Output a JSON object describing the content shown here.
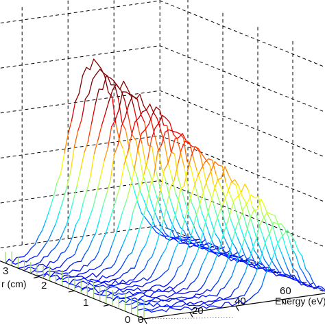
{
  "chart_data": {
    "type": "waterfall-3d",
    "title": "",
    "xlabel": "Energy (eV)",
    "ylabel": "r (cm)",
    "zlabel": "",
    "x_ticks": [
      "0",
      "20",
      "40",
      "60"
    ],
    "y_ticks": [
      "0",
      "1",
      "2",
      "3"
    ],
    "xlim": [
      0,
      80
    ],
    "ylim": [
      0,
      4
    ],
    "grid": true,
    "colormap": "jet",
    "series_count": 23,
    "r_step_cm": 0.18,
    "energy_peak_center_eV": [
      62,
      38
    ],
    "energy_peak_width_eV": [
      9,
      16
    ],
    "peak_height_relative": [
      0.35,
      1.0
    ]
  }
}
